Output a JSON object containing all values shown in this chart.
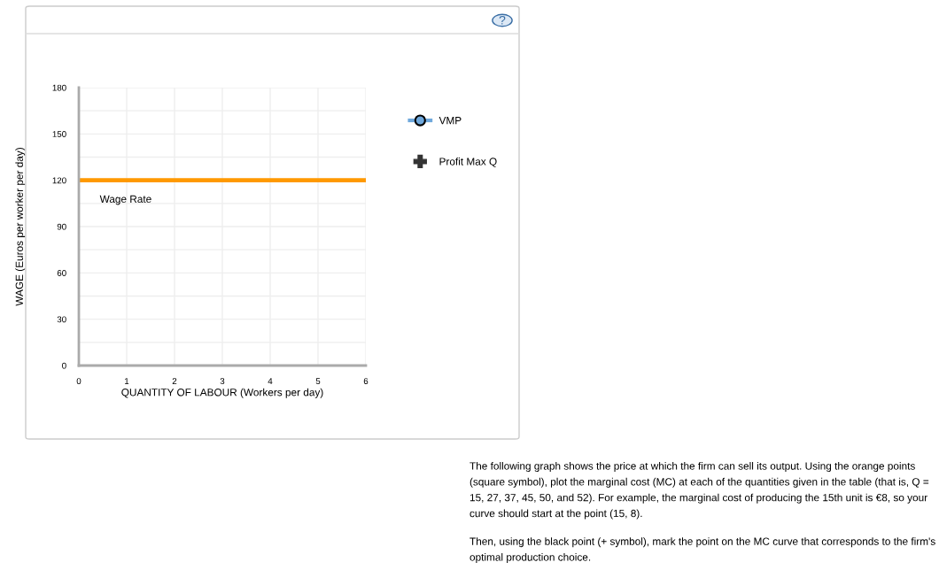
{
  "chart_data": {
    "type": "line",
    "xlabel": "QUANTITY OF LABOUR (Workers per day)",
    "ylabel": "WAGE (Euros per worker per day)",
    "xlim": [
      0,
      6
    ],
    "xticks": [
      0,
      1,
      2,
      3,
      4,
      5,
      6
    ],
    "ylim": [
      0,
      180
    ],
    "yticks": [
      0,
      {
        "value": 15,
        "label": null
      },
      30,
      {
        "value": 45,
        "label": null
      },
      60,
      {
        "value": 75,
        "label": null
      },
      90,
      {
        "value": 105,
        "label": null
      },
      120,
      {
        "value": 135,
        "label": null
      },
      150,
      {
        "value": 165,
        "label": null
      },
      180
    ],
    "grid": true,
    "legend": "right",
    "series": [
      {
        "name": "Wage Rate",
        "color": "#ff9900",
        "x": [
          0,
          6
        ],
        "values": [
          120,
          120
        ],
        "marker": "none"
      },
      {
        "name": "VMP",
        "color": "#6fa8dc",
        "marker": "circle"
      },
      {
        "name": "Profit Max Q",
        "color": "#333333",
        "marker": "cross",
        "type": "scatter"
      }
    ],
    "annotations": [
      "?",
      "The following graph shows the price at which the firm can sell its output. Using the orange points (square symbol), plot the marginal cost (MC) at each of the quantities given in the table (that is, Q = 15, 27, 37, 45, 50, and 52). For example, the marginal cost of producing the 15th unit is €8, so your curve should start at the point (15, 8).",
      "Then, using the black point (+ symbol), mark the point on the MC curve that corresponds to the firm's optimal production choice."
    ]
  }
}
